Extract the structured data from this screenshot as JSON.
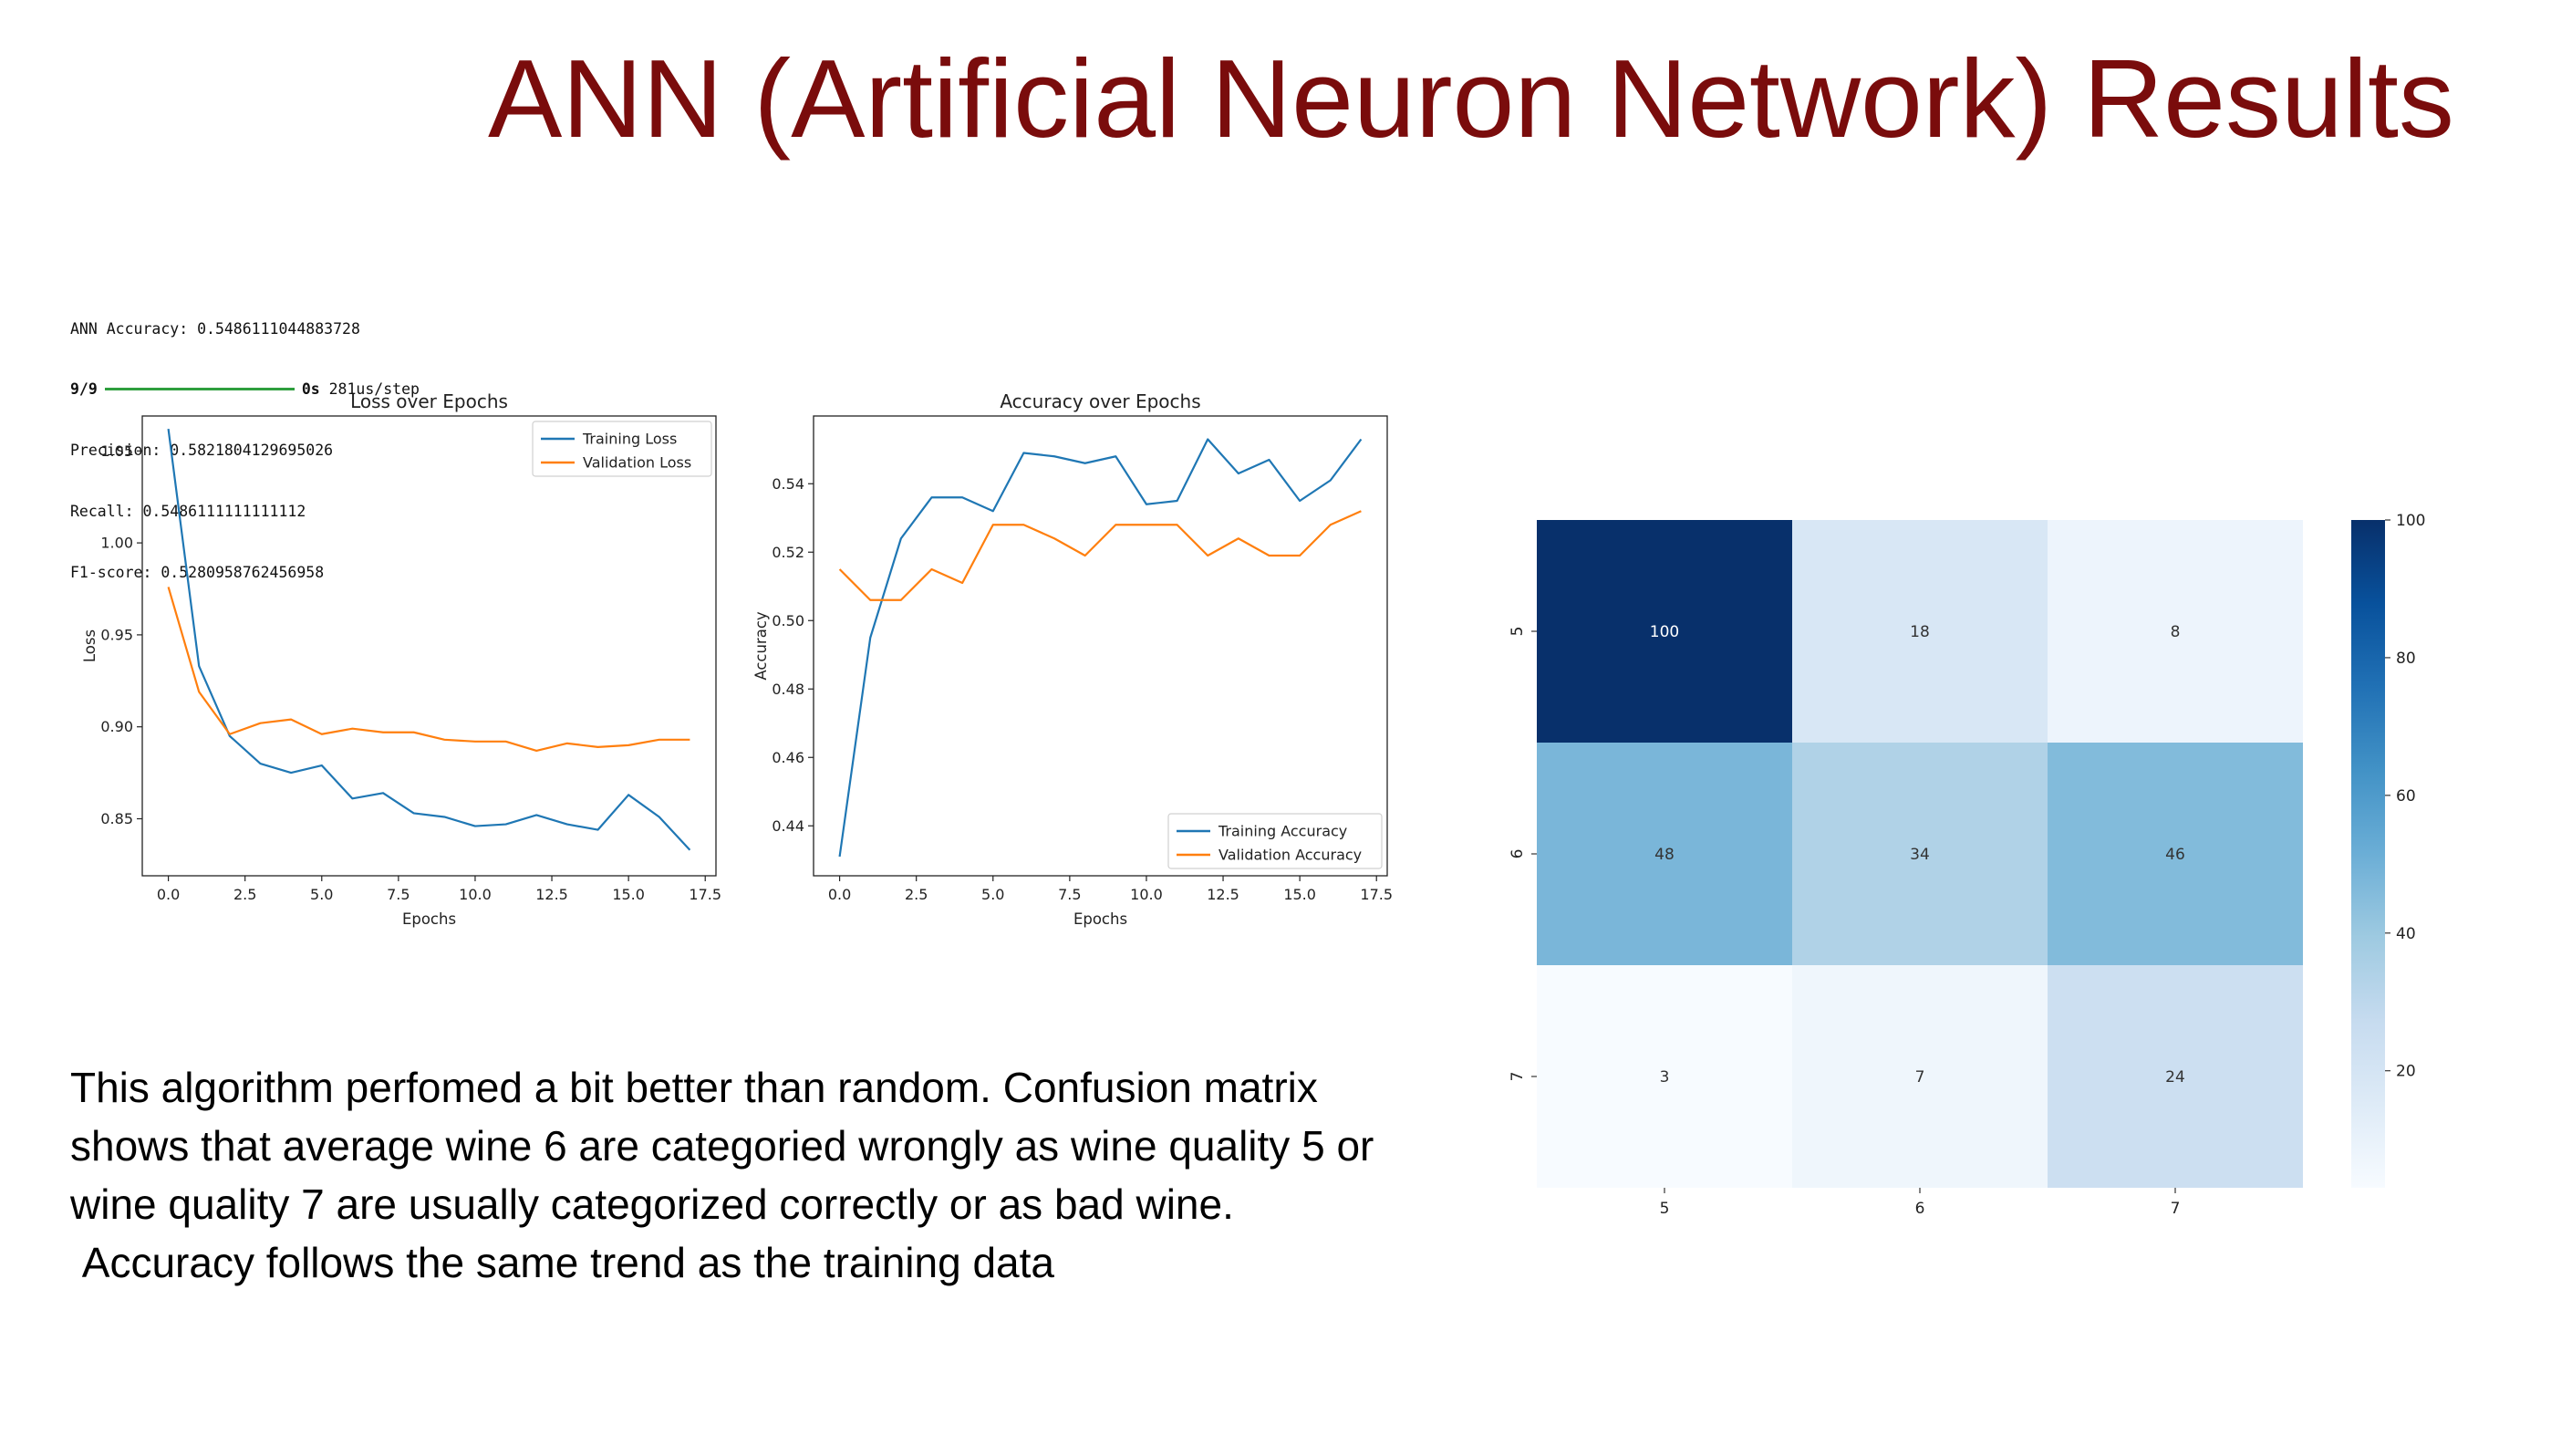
{
  "slide": {
    "title": "ANN (Artificial Neuron Network) Results",
    "console": {
      "accuracy_line": "ANN Accuracy: 0.5486111044883728",
      "progress_step": "9/9",
      "progress_time": "0s",
      "progress_rate": "281us/step",
      "precision_line": "Precision: 0.5821804129695026",
      "recall_line": "Recall: 0.5486111111111112",
      "f1_line": "F1-score: 0.5280958762456958"
    },
    "body_text": {
      "paragraph1": "This algorithm perfomed a bit better than random. Confusion matrix shows that average wine 6 are categoried wrongly as wine quality 5 or wine quality 7 are usually categorized correctly or as bad wine.",
      "paragraph2": " Accuracy follows the same trend as the training data"
    }
  },
  "chart_data": [
    {
      "type": "line",
      "title": "Loss over Epochs",
      "xlabel": "Epochs",
      "ylabel": "Loss",
      "xlim": [
        -0.85,
        17.85
      ],
      "ylim": [
        0.819,
        1.069
      ],
      "xticks": [
        "0.0",
        "2.5",
        "5.0",
        "7.5",
        "10.0",
        "12.5",
        "15.0",
        "17.5"
      ],
      "yticks": [
        "0.85",
        "0.90",
        "0.95",
        "1.00",
        "1.05"
      ],
      "legend_position": "top-right",
      "x": [
        0,
        1,
        2,
        3,
        4,
        5,
        6,
        7,
        8,
        9,
        10,
        11,
        12,
        13,
        14,
        15,
        16,
        17
      ],
      "series": [
        {
          "name": "Training Loss",
          "color": "#1f77b4",
          "values": [
            1.062,
            0.933,
            0.895,
            0.88,
            0.875,
            0.879,
            0.861,
            0.864,
            0.853,
            0.851,
            0.846,
            0.847,
            0.852,
            0.847,
            0.844,
            0.863,
            0.851,
            0.833
          ]
        },
        {
          "name": "Validation Loss",
          "color": "#ff7f0e",
          "values": [
            0.976,
            0.919,
            0.896,
            0.902,
            0.904,
            0.896,
            0.899,
            0.897,
            0.897,
            0.893,
            0.892,
            0.892,
            0.887,
            0.891,
            0.889,
            0.89,
            0.893,
            0.893
          ]
        }
      ]
    },
    {
      "type": "line",
      "title": "Accuracy over Epochs",
      "xlabel": "Epochs",
      "ylabel": "Accuracy",
      "xlim": [
        -0.85,
        17.85
      ],
      "ylim": [
        0.4254,
        0.5598
      ],
      "xticks": [
        "0.0",
        "2.5",
        "5.0",
        "7.5",
        "10.0",
        "12.5",
        "15.0",
        "17.5"
      ],
      "yticks": [
        "0.44",
        "0.46",
        "0.48",
        "0.50",
        "0.52",
        "0.54"
      ],
      "legend_position": "bottom-right",
      "x": [
        0,
        1,
        2,
        3,
        4,
        5,
        6,
        7,
        8,
        9,
        10,
        11,
        12,
        13,
        14,
        15,
        16,
        17
      ],
      "series": [
        {
          "name": "Training Accuracy",
          "color": "#1f77b4",
          "values": [
            0.431,
            0.495,
            0.524,
            0.536,
            0.536,
            0.532,
            0.549,
            0.548,
            0.546,
            0.548,
            0.534,
            0.535,
            0.553,
            0.543,
            0.547,
            0.535,
            0.541,
            0.553
          ]
        },
        {
          "name": "Validation Accuracy",
          "color": "#ff7f0e",
          "values": [
            0.515,
            0.506,
            0.506,
            0.515,
            0.511,
            0.528,
            0.528,
            0.524,
            0.519,
            0.528,
            0.528,
            0.528,
            0.519,
            0.524,
            0.519,
            0.519,
            0.528,
            0.532
          ]
        }
      ]
    },
    {
      "type": "heatmap",
      "title": "",
      "xlabel": "",
      "ylabel": "",
      "x_categories": [
        "5",
        "6",
        "7"
      ],
      "y_categories": [
        "5",
        "6",
        "7"
      ],
      "values": [
        [
          100,
          18,
          8
        ],
        [
          48,
          34,
          46
        ],
        [
          3,
          7,
          24
        ]
      ],
      "colormap": "Blues",
      "colorbar_range": [
        3,
        100
      ],
      "colorbar_ticks": [
        "20",
        "40",
        "60",
        "80",
        "100"
      ]
    }
  ]
}
